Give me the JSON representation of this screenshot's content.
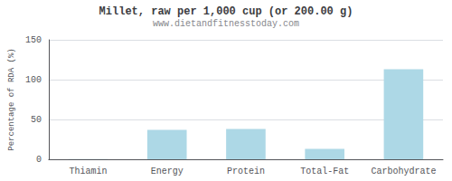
{
  "chart_data": {
    "type": "bar",
    "title": "Millet, raw per 1,000 cup (or 200.00 g)",
    "subtitle": "www.dietandfitnesstoday.com",
    "ylabel": "Percentage of RDA (%)",
    "categories": [
      "Thiamin",
      "Energy",
      "Protein",
      "Total-Fat",
      "Carbohydrate"
    ],
    "values": [
      0.4,
      37,
      38,
      13,
      113
    ],
    "color": "#add8e6",
    "ylim": [
      0,
      150
    ],
    "yticks": [
      0,
      50,
      100,
      150
    ],
    "grid": true
  }
}
